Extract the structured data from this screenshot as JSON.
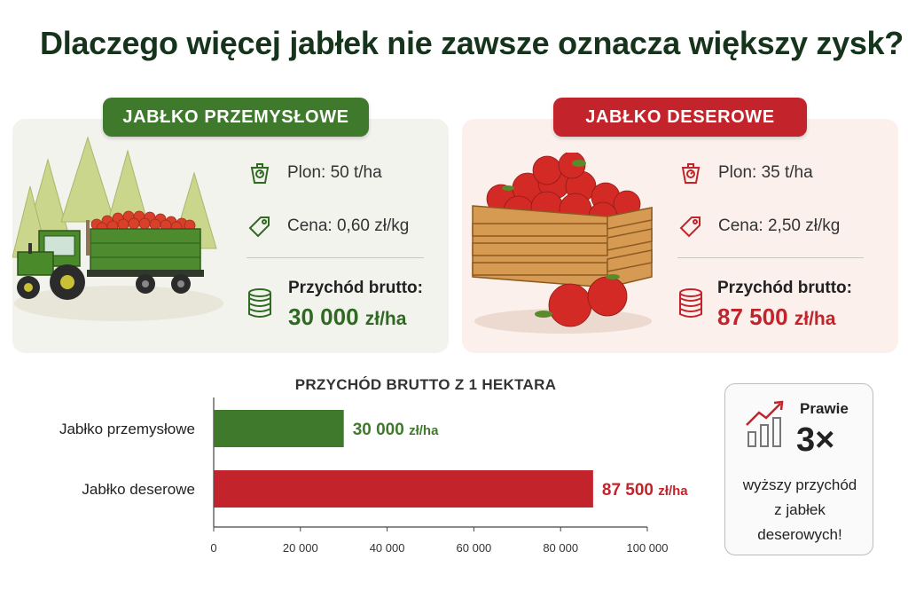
{
  "title": "Dlaczego więcej jabłek nie zawsze oznacza większy zysk?",
  "colors": {
    "green": "#3f7a2c",
    "red": "#c3232a",
    "dark_green": "#2f6a22"
  },
  "industrial": {
    "label": "JABŁKO PRZEMYSŁOWE",
    "yield": "Plon: 50 t/ha",
    "price": "Cena: 0,60 zł/kg",
    "revenue_label": "Przychód brutto:",
    "revenue_value": "30 000",
    "revenue_unit": "zł/ha",
    "icons": [
      "scale-icon",
      "price-tag-icon",
      "coins-icon"
    ],
    "illustration": "tractor-with-apples"
  },
  "dessert": {
    "label": "JABŁKO DESEROWE",
    "yield": "Plon: 35 t/ha",
    "price": "Cena: 2,50 zł/kg",
    "revenue_label": "Przychód brutto:",
    "revenue_value": "87 500",
    "revenue_unit": "zł/ha",
    "icons": [
      "scale-icon",
      "price-tag-icon",
      "coins-icon"
    ],
    "illustration": "crate-of-apples"
  },
  "chart_data": {
    "type": "bar",
    "orientation": "horizontal",
    "title": "PRZYCHÓD BRUTTO Z 1 HEKTARA",
    "categories": [
      "Jabłko przemysłowe",
      "Jabłko deserowe"
    ],
    "values": [
      30000,
      87500
    ],
    "value_labels": [
      "30 000",
      "87 500"
    ],
    "value_unit": "zł/ha",
    "bar_colors": [
      "#3f7a2c",
      "#c3232a"
    ],
    "xlim": [
      0,
      100000
    ],
    "ticks": [
      0,
      20000,
      40000,
      60000,
      80000,
      100000
    ],
    "tick_labels": [
      "0",
      "20 000",
      "40 000",
      "60 000",
      "80 000",
      "100 000"
    ],
    "grid": false
  },
  "callout": {
    "top": "Prawie",
    "multiplier": "3×",
    "desc_line1": "wyższy przychód",
    "desc_line2": "z jabłek",
    "desc_line3": "deserowych!",
    "icon": "growth-chart-icon"
  }
}
